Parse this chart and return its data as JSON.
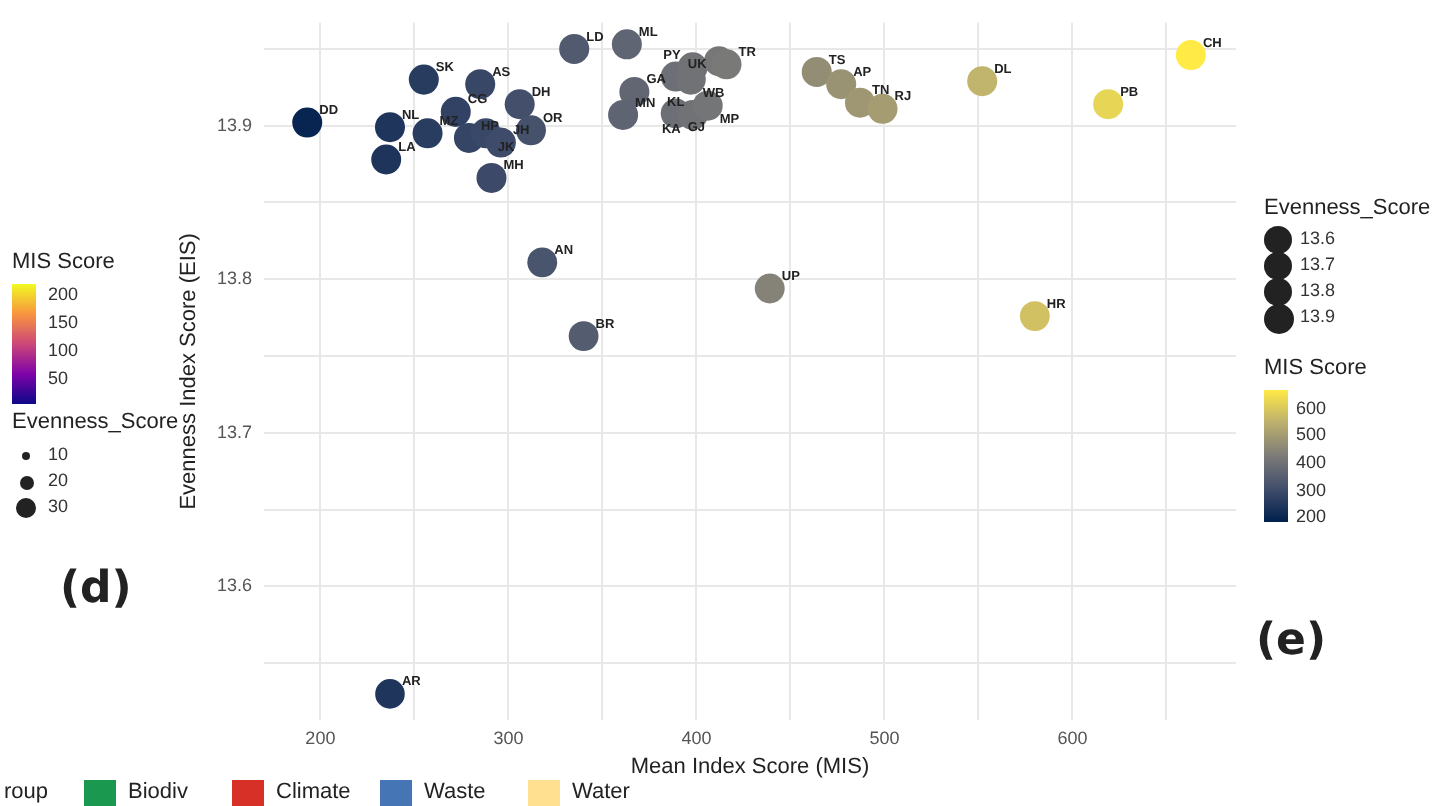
{
  "chart_data": [
    {
      "type": "bubble",
      "xlabel": "Mean Index Score (MIS)",
      "ylabel": "Evenness Index Score (EIS)",
      "clabel": "MIS Score",
      "legend_title": "Evenness_Score",
      "grid": true,
      "xlim": [
        170,
        687
      ],
      "ylim": [
        13.513,
        13.967
      ],
      "xticks": [
        200,
        {
          "value": 250,
          "label": null
        },
        300,
        {
          "value": 350,
          "label": null
        },
        400,
        {
          "value": 450,
          "label": null
        },
        500,
        {
          "value": 550,
          "label": null
        },
        600,
        {
          "value": 650,
          "label": null
        }
      ],
      "yticks": [
        {
          "value": 13.55,
          "label": null
        },
        13.6,
        {
          "value": 13.65,
          "label": null
        },
        13.7,
        {
          "value": 13.75,
          "label": null
        },
        13.8,
        {
          "value": 13.85,
          "label": null
        },
        13.9,
        {
          "value": 13.95,
          "label": null
        }
      ],
      "clim": [
        180,
        663
      ],
      "cticks": [
        200,
        300,
        400,
        500,
        600
      ],
      "size_legend": [
        13.6,
        13.7,
        13.8,
        13.9
      ],
      "x": [
        193,
        237,
        257,
        235,
        255,
        285,
        272,
        306,
        279,
        288,
        296,
        291,
        312,
        335,
        363,
        367,
        361,
        389,
        398,
        412,
        416,
        397,
        389,
        398,
        406,
        318,
        340,
        439,
        464,
        477,
        487,
        499,
        552,
        619,
        663,
        580,
        237
      ],
      "values": [
        13.902,
        13.899,
        13.895,
        13.878,
        13.93,
        13.927,
        13.909,
        13.914,
        13.892,
        13.895,
        13.889,
        13.866,
        13.897,
        13.95,
        13.953,
        13.922,
        13.907,
        13.932,
        13.938,
        13.942,
        13.94,
        13.93,
        13.908,
        13.907,
        13.913,
        13.811,
        13.763,
        13.794,
        13.935,
        13.927,
        13.915,
        13.911,
        13.929,
        13.914,
        13.946,
        13.776,
        13.53
      ],
      "cvalues": [
        193,
        237,
        257,
        235,
        255,
        285,
        272,
        306,
        279,
        288,
        296,
        291,
        312,
        335,
        363,
        367,
        361,
        389,
        398,
        412,
        416,
        397,
        389,
        398,
        406,
        318,
        340,
        439,
        464,
        477,
        487,
        499,
        552,
        619,
        663,
        580,
        237
      ],
      "sizes": [
        13.902,
        13.899,
        13.895,
        13.878,
        13.93,
        13.927,
        13.909,
        13.914,
        13.892,
        13.895,
        13.889,
        13.866,
        13.897,
        13.95,
        13.953,
        13.922,
        13.907,
        13.932,
        13.938,
        13.942,
        13.94,
        13.93,
        13.908,
        13.907,
        13.913,
        13.811,
        13.763,
        13.794,
        13.935,
        13.927,
        13.915,
        13.911,
        13.929,
        13.914,
        13.946,
        13.776,
        13.53
      ],
      "annotations": [
        {
          "text": "DD",
          "x": 193,
          "y": 13.902
        },
        {
          "text": "NL",
          "x": 237,
          "y": 13.899
        },
        {
          "text": "MZ",
          "x": 257,
          "y": 13.895
        },
        {
          "text": "LA",
          "x": 235,
          "y": 13.878
        },
        {
          "text": "SK",
          "x": 255,
          "y": 13.93
        },
        {
          "text": "AS",
          "x": 285,
          "y": 13.927
        },
        {
          "text": "CG",
          "x": 272,
          "y": 13.909
        },
        {
          "text": "DH",
          "x": 306,
          "y": 13.914
        },
        {
          "text": "HP",
          "x": 279,
          "y": 13.892
        },
        {
          "text": "JK",
          "x": 288,
          "y": 13.895
        },
        {
          "text": "JH",
          "x": 296,
          "y": 13.889
        },
        {
          "text": "MH",
          "x": 291,
          "y": 13.866
        },
        {
          "text": "OR",
          "x": 312,
          "y": 13.897
        },
        {
          "text": "LD",
          "x": 335,
          "y": 13.95
        },
        {
          "text": "ML",
          "x": 363,
          "y": 13.953
        },
        {
          "text": "GA",
          "x": 367,
          "y": 13.922
        },
        {
          "text": "MN",
          "x": 361,
          "y": 13.907
        },
        {
          "text": "UK",
          "x": 389,
          "y": 13.932
        },
        {
          "text": "PY",
          "x": 398,
          "y": 13.938
        },
        {
          "text": "TR",
          "x": 416,
          "y": 13.94
        },
        {
          "text": "WB",
          "x": 397,
          "y": 13.93
        },
        {
          "text": "KL",
          "x": 389,
          "y": 13.932
        },
        {
          "text": "GJ",
          "x": 389,
          "y": 13.908
        },
        {
          "text": "KA",
          "x": 398,
          "y": 13.907
        },
        {
          "text": "MP",
          "x": 406,
          "y": 13.913
        },
        {
          "text": "AN",
          "x": 318,
          "y": 13.811
        },
        {
          "text": "BR",
          "x": 340,
          "y": 13.763
        },
        {
          "text": "UP",
          "x": 439,
          "y": 13.794
        },
        {
          "text": "TS",
          "x": 464,
          "y": 13.935
        },
        {
          "text": "AP",
          "x": 477,
          "y": 13.927
        },
        {
          "text": "TN",
          "x": 487,
          "y": 13.915
        },
        {
          "text": "RJ",
          "x": 499,
          "y": 13.911
        },
        {
          "text": "DL",
          "x": 552,
          "y": 13.929
        },
        {
          "text": "PB",
          "x": 619,
          "y": 13.914
        },
        {
          "text": "CH",
          "x": 663,
          "y": 13.946
        },
        {
          "text": "HR",
          "x": 580,
          "y": 13.776
        },
        {
          "text": "AR",
          "x": 237,
          "y": 13.53
        },
        "MIS Score",
        "200",
        "150",
        "100",
        "50",
        "Evenness_Score",
        "10",
        "20",
        "30",
        "(d)",
        "(e)"
      ]
    },
    {
      "type": "other",
      "legend_title": "roup",
      "categories": [
        "Biodiv",
        "Climate",
        "Waste",
        "Water"
      ],
      "colors": [
        "#1a9850",
        "#d73027",
        "#4575b4",
        "#fee090"
      ]
    }
  ]
}
